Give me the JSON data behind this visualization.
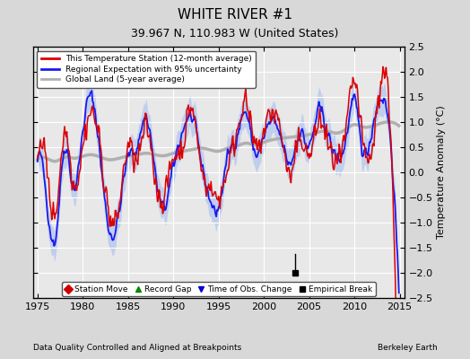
{
  "title": "WHITE RIVER #1",
  "subtitle": "39.967 N, 110.983 W (United States)",
  "xlabel_left": "Data Quality Controlled and Aligned at Breakpoints",
  "xlabel_right": "Berkeley Earth",
  "ylabel_right": "Temperature Anomaly (°C)",
  "xlim": [
    1974.5,
    2015.5
  ],
  "ylim": [
    -2.5,
    2.5
  ],
  "xticks": [
    1975,
    1980,
    1985,
    1990,
    1995,
    2000,
    2005,
    2010,
    2015
  ],
  "yticks": [
    -2.5,
    -2,
    -1.5,
    -1,
    -0.5,
    0,
    0.5,
    1,
    1.5,
    2,
    2.5
  ],
  "empirical_break_x": 2003.5,
  "empirical_break_y": -2.0,
  "empirical_break_line_top": -1.62,
  "fig_bg_color": "#d8d8d8",
  "plot_bg_color": "#e8e8e8",
  "grid_color": "#ffffff",
  "legend_top_loc": "upper left",
  "title_fontsize": 11,
  "subtitle_fontsize": 9,
  "tick_labelsize": 8,
  "ylabel_fontsize": 8
}
